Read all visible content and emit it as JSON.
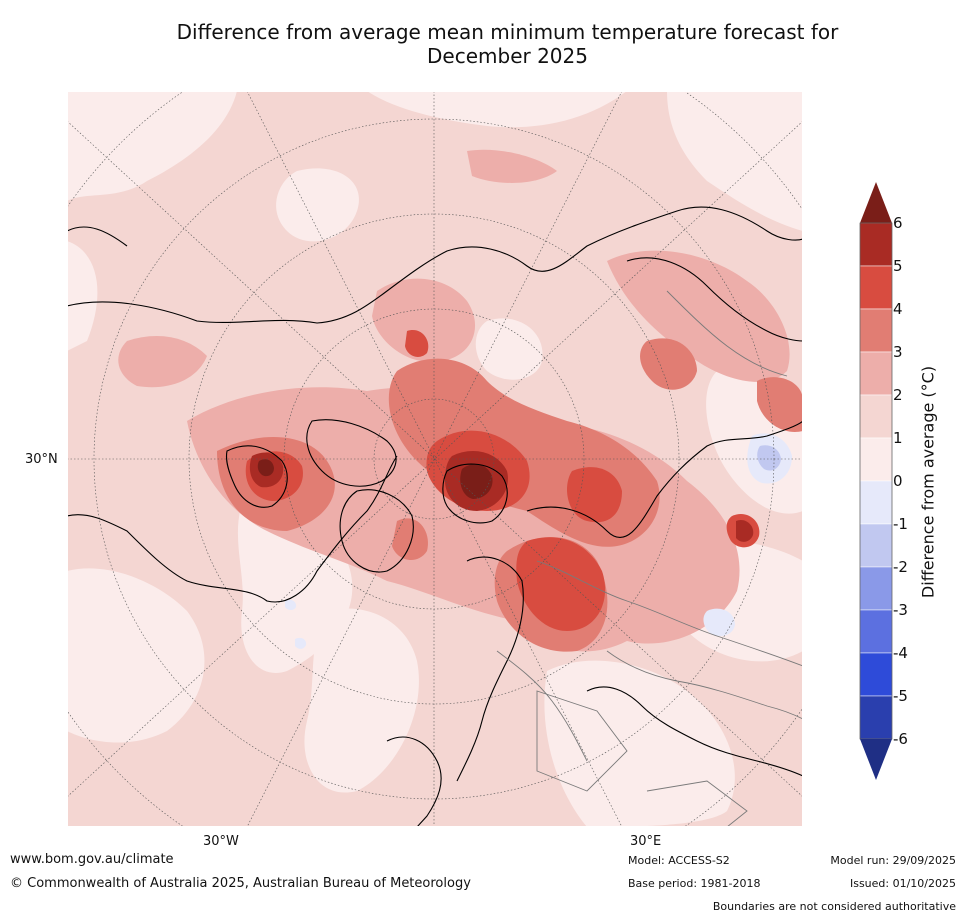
{
  "title_line1": "Difference from average mean minimum temperature forecast for",
  "title_line2": "December 2025",
  "map": {
    "labels": {
      "lat_left": "30°N",
      "lon_left": "30°W",
      "lon_right": "30°E"
    },
    "colors": {
      "ocean_land_base": "#f4d6d2",
      "light": "#fbeceb",
      "mid": "#edaeaa",
      "warm": "#e17d73",
      "hot": "#d84c40",
      "very_hot": "#a92b24",
      "extreme": "#7a1e18",
      "cool": "#e6e9fa",
      "cooler": "#c1c8f0",
      "coast": "#000000",
      "border": "#7a7a7a"
    }
  },
  "colorbar": {
    "title": "Difference from average (°C)",
    "ticks": [
      "6",
      "5",
      "4",
      "3",
      "2",
      "1",
      "0",
      "-1",
      "-2",
      "-3",
      "-4",
      "-5",
      "-6"
    ],
    "colors": [
      "#a92b24",
      "#d84c40",
      "#e17d73",
      "#edaeaa",
      "#f4d6d2",
      "#fbeceb",
      "#e6e9fa",
      "#c1c8f0",
      "#8a99e8",
      "#5c70e0",
      "#2e4bd9",
      "#2a3fae"
    ],
    "over_color": "#7a1e18",
    "under_color": "#1f2f85"
  },
  "footer": {
    "website": "www.bom.gov.au/climate",
    "copyright": "© Commonwealth of Australia 2025, Australian Bureau of Meteorology",
    "model": "Model: ACCESS-S2",
    "base_period": "Base period: 1981-2018",
    "model_run": "Model run: 29/09/2025",
    "issued": "Issued: 01/10/2025",
    "disclaimer": "Boundaries are not considered authoritative"
  }
}
